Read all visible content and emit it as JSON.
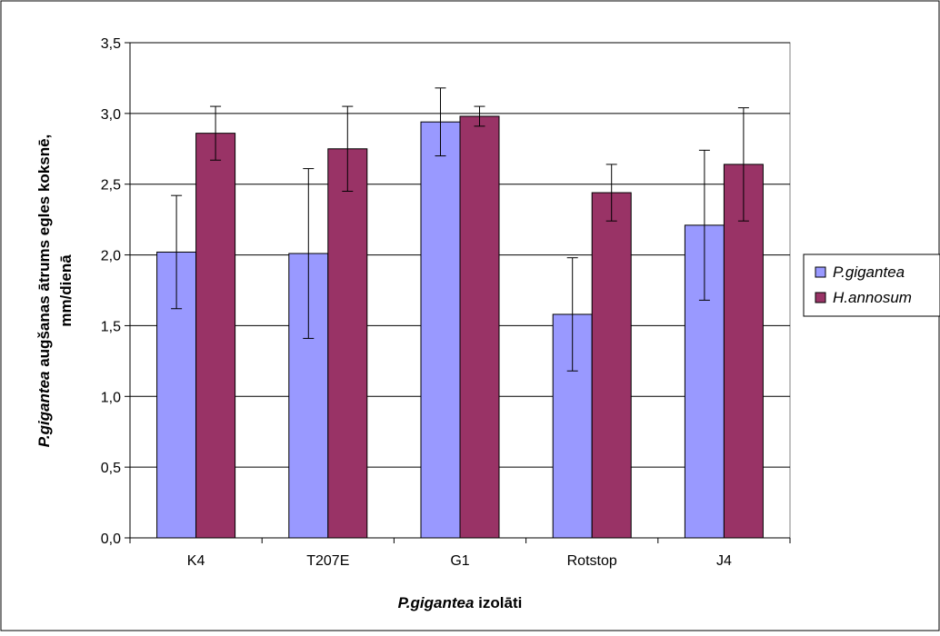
{
  "chart_data": {
    "type": "bar",
    "xlabel": {
      "italic": "P.gigantea",
      "rest": " izolāti"
    },
    "ylabel": {
      "line1_italic": "P.gigantea",
      "line1_rest": " augšanas ātrums egles koksnē,",
      "line2": "mm/dienā"
    },
    "categories": [
      "K4",
      "T207E",
      "G1",
      "Rotstop",
      "J4"
    ],
    "ylim": [
      0,
      3.5
    ],
    "yticks": [
      "0,0",
      "0,5",
      "1,0",
      "1,5",
      "2,0",
      "2,5",
      "3,0",
      "3,5"
    ],
    "grid": true,
    "legend_position": "right",
    "series": [
      {
        "name": "P.gigantea",
        "color": "#9999ff",
        "values": [
          2.02,
          2.01,
          2.94,
          1.58,
          2.21
        ],
        "errors": [
          0.4,
          0.6,
          0.24,
          0.4,
          0.53
        ]
      },
      {
        "name": "H.annosum",
        "color": "#993366",
        "values": [
          2.86,
          2.75,
          2.98,
          2.44,
          2.64
        ],
        "errors": [
          0.19,
          0.3,
          0.07,
          0.2,
          0.4
        ]
      }
    ]
  }
}
